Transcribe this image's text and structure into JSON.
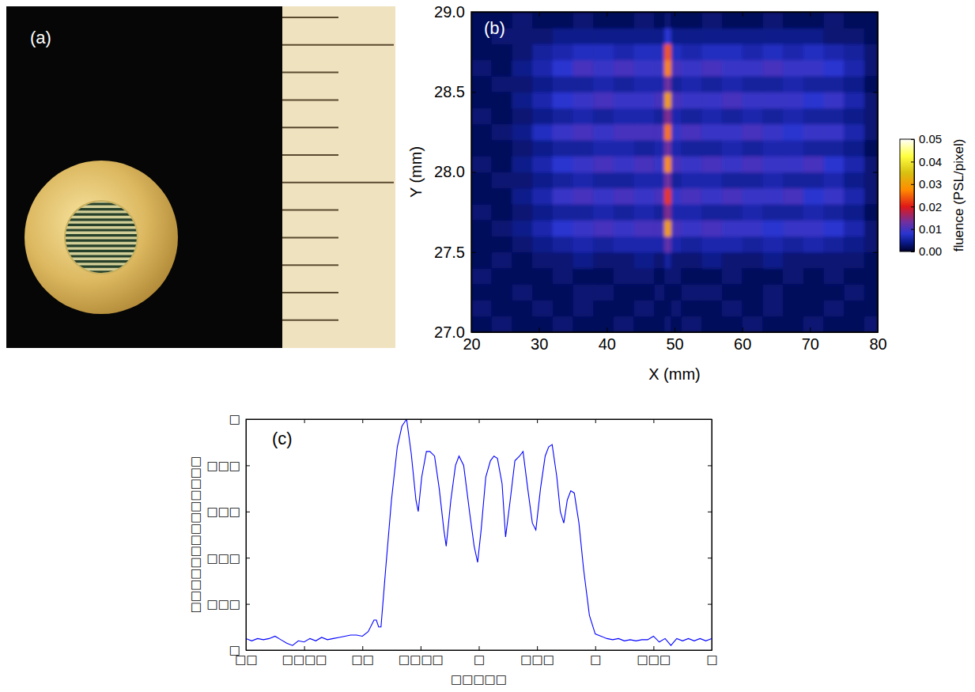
{
  "chart_data": [
    {
      "type": "image",
      "panel": "(a)"
    },
    {
      "type": "heatmap",
      "panel": "(b)",
      "xlabel": "X (mm)",
      "ylabel": "Y (mm)",
      "xlim": [
        20,
        80
      ],
      "xticks": [
        20,
        30,
        40,
        50,
        60,
        70,
        80
      ],
      "ylim": [
        27.0,
        29.0
      ],
      "yticks": [
        {
          "value": 27.0,
          "label": "27.0"
        },
        27.5,
        {
          "value": 28.0,
          "label": "28.0"
        },
        28.5,
        {
          "value": 29.0,
          "label": "29.0"
        }
      ],
      "x_edges": [
        20,
        23,
        26,
        29,
        32,
        35,
        38,
        41,
        44,
        47,
        48.5,
        49.5,
        51,
        54,
        57,
        60,
        63,
        66,
        69,
        72,
        75,
        78,
        80
      ],
      "y_edges": [
        27.0,
        27.1,
        27.2,
        27.3,
        27.4,
        27.5,
        27.6,
        27.7,
        27.8,
        27.9,
        28.0,
        28.1,
        28.2,
        28.3,
        28.4,
        28.5,
        28.6,
        28.7,
        28.8,
        28.9,
        29.0
      ],
      "z": [
        [
          0.002,
          0.003,
          0.002,
          0.002,
          0.003,
          0.002,
          0.002,
          0.003,
          0.002,
          0.002,
          0.003,
          0.002,
          0.003,
          0.002,
          0.002,
          0.003,
          0.002,
          0.002,
          0.003,
          0.002,
          0.002,
          0.003
        ],
        [
          0.003,
          0.002,
          0.002,
          0.003,
          0.002,
          0.003,
          0.002,
          0.002,
          0.003,
          0.002,
          0.002,
          0.003,
          0.002,
          0.002,
          0.003,
          0.002,
          0.003,
          0.002,
          0.002,
          0.003,
          0.002,
          0.002
        ],
        [
          0.002,
          0.002,
          0.003,
          0.002,
          0.002,
          0.003,
          0.003,
          0.002,
          0.002,
          0.003,
          0.002,
          0.002,
          0.003,
          0.003,
          0.002,
          0.002,
          0.003,
          0.002,
          0.002,
          0.002,
          0.003,
          0.002
        ],
        [
          0.003,
          0.002,
          0.002,
          0.002,
          0.003,
          0.002,
          0.002,
          0.003,
          0.003,
          0.002,
          0.003,
          0.003,
          0.002,
          0.002,
          0.003,
          0.002,
          0.002,
          0.003,
          0.002,
          0.003,
          0.002,
          0.002
        ],
        [
          0.002,
          0.003,
          0.002,
          0.003,
          0.003,
          0.004,
          0.003,
          0.003,
          0.004,
          0.003,
          0.005,
          0.003,
          0.003,
          0.004,
          0.003,
          0.003,
          0.004,
          0.003,
          0.003,
          0.003,
          0.003,
          0.002
        ],
        [
          0.002,
          0.002,
          0.003,
          0.004,
          0.005,
          0.006,
          0.005,
          0.006,
          0.006,
          0.006,
          0.012,
          0.006,
          0.005,
          0.006,
          0.006,
          0.005,
          0.006,
          0.005,
          0.006,
          0.005,
          0.004,
          0.003
        ],
        [
          0.002,
          0.003,
          0.004,
          0.006,
          0.008,
          0.009,
          0.01,
          0.009,
          0.01,
          0.01,
          0.03,
          0.01,
          0.009,
          0.01,
          0.009,
          0.009,
          0.008,
          0.009,
          0.009,
          0.008,
          0.006,
          0.003
        ],
        [
          0.003,
          0.002,
          0.003,
          0.004,
          0.005,
          0.005,
          0.006,
          0.005,
          0.006,
          0.005,
          0.014,
          0.006,
          0.006,
          0.005,
          0.005,
          0.006,
          0.005,
          0.005,
          0.006,
          0.005,
          0.004,
          0.002
        ],
        [
          0.002,
          0.002,
          0.004,
          0.006,
          0.009,
          0.01,
          0.009,
          0.01,
          0.009,
          0.01,
          0.022,
          0.009,
          0.01,
          0.009,
          0.01,
          0.009,
          0.009,
          0.01,
          0.008,
          0.009,
          0.006,
          0.003
        ],
        [
          0.002,
          0.003,
          0.003,
          0.004,
          0.005,
          0.006,
          0.005,
          0.005,
          0.006,
          0.006,
          0.013,
          0.005,
          0.006,
          0.006,
          0.005,
          0.005,
          0.006,
          0.005,
          0.005,
          0.006,
          0.004,
          0.003
        ],
        [
          0.003,
          0.002,
          0.004,
          0.006,
          0.008,
          0.009,
          0.01,
          0.009,
          0.01,
          0.009,
          0.028,
          0.01,
          0.009,
          0.01,
          0.009,
          0.01,
          0.009,
          0.009,
          0.01,
          0.008,
          0.006,
          0.003
        ],
        [
          0.002,
          0.002,
          0.003,
          0.004,
          0.005,
          0.005,
          0.006,
          0.006,
          0.005,
          0.006,
          0.013,
          0.006,
          0.005,
          0.005,
          0.006,
          0.005,
          0.006,
          0.006,
          0.005,
          0.005,
          0.004,
          0.002
        ],
        [
          0.002,
          0.003,
          0.004,
          0.007,
          0.009,
          0.01,
          0.009,
          0.01,
          0.01,
          0.01,
          0.026,
          0.009,
          0.01,
          0.009,
          0.009,
          0.01,
          0.009,
          0.008,
          0.009,
          0.009,
          0.006,
          0.003
        ],
        [
          0.003,
          0.002,
          0.003,
          0.004,
          0.005,
          0.006,
          0.005,
          0.006,
          0.006,
          0.005,
          0.014,
          0.006,
          0.005,
          0.006,
          0.005,
          0.006,
          0.005,
          0.006,
          0.005,
          0.005,
          0.004,
          0.003
        ],
        [
          0.002,
          0.002,
          0.004,
          0.006,
          0.008,
          0.009,
          0.01,
          0.009,
          0.009,
          0.01,
          0.03,
          0.01,
          0.009,
          0.009,
          0.01,
          0.009,
          0.009,
          0.009,
          0.008,
          0.009,
          0.006,
          0.003
        ],
        [
          0.002,
          0.003,
          0.003,
          0.004,
          0.005,
          0.005,
          0.006,
          0.005,
          0.006,
          0.006,
          0.013,
          0.005,
          0.006,
          0.005,
          0.006,
          0.005,
          0.005,
          0.006,
          0.005,
          0.005,
          0.004,
          0.002
        ],
        [
          0.003,
          0.002,
          0.004,
          0.006,
          0.008,
          0.01,
          0.009,
          0.01,
          0.009,
          0.009,
          0.027,
          0.01,
          0.009,
          0.01,
          0.009,
          0.009,
          0.01,
          0.009,
          0.009,
          0.008,
          0.006,
          0.003
        ],
        [
          0.002,
          0.002,
          0.003,
          0.005,
          0.006,
          0.007,
          0.007,
          0.006,
          0.007,
          0.007,
          0.024,
          0.007,
          0.006,
          0.007,
          0.007,
          0.006,
          0.007,
          0.006,
          0.007,
          0.006,
          0.005,
          0.003
        ],
        [
          0.002,
          0.003,
          0.003,
          0.003,
          0.004,
          0.004,
          0.004,
          0.004,
          0.004,
          0.004,
          0.008,
          0.004,
          0.004,
          0.004,
          0.004,
          0.004,
          0.004,
          0.004,
          0.004,
          0.003,
          0.003,
          0.002
        ],
        [
          0.002,
          0.002,
          0.003,
          0.002,
          0.002,
          0.003,
          0.002,
          0.002,
          0.003,
          0.002,
          0.003,
          0.002,
          0.002,
          0.003,
          0.002,
          0.002,
          0.003,
          0.002,
          0.002,
          0.003,
          0.002,
          0.002
        ]
      ],
      "colorbar": {
        "range": [
          0,
          0.05
        ],
        "ticks": [
          {
            "value": 0,
            "label": "0.00"
          },
          0.01,
          0.02,
          0.03,
          0.04,
          0.05
        ],
        "label": "fluence (PSL/pixel)"
      }
    },
    {
      "type": "line",
      "panel": "(c)",
      "xlabel": "□□□□□",
      "ylabel": "□□□□□□□□□□□□□□",
      "color": "#0000ff",
      "xlim": [
        -2,
        2
      ],
      "xticks": [
        {
          "value": -2,
          "label": "□□"
        },
        {
          "value": -1.5,
          "label": "□□□□"
        },
        {
          "value": -1,
          "label": "□□"
        },
        {
          "value": -0.5,
          "label": "□□□□"
        },
        {
          "value": 0,
          "label": "□"
        },
        {
          "value": 0.5,
          "label": "□□□"
        },
        {
          "value": 1,
          "label": "□"
        },
        {
          "value": 1.5,
          "label": "□□□"
        },
        {
          "value": 2,
          "label": "□"
        }
      ],
      "ylim": [
        0,
        1
      ],
      "yticks": [
        {
          "value": 0,
          "label": "□"
        },
        {
          "value": 0.2,
          "label": "□□□"
        },
        {
          "value": 0.4,
          "label": "□□□"
        },
        {
          "value": 0.6,
          "label": "□□□"
        },
        {
          "value": 0.8,
          "label": "□□□"
        },
        {
          "value": 1,
          "label": "□"
        }
      ],
      "x": [
        -2.0,
        -1.95,
        -1.9,
        -1.85,
        -1.8,
        -1.75,
        -1.7,
        -1.65,
        -1.6,
        -1.55,
        -1.5,
        -1.45,
        -1.4,
        -1.35,
        -1.3,
        -1.25,
        -1.2,
        -1.15,
        -1.1,
        -1.05,
        -1.0,
        -0.95,
        -0.9,
        -0.88,
        -0.86,
        -0.84,
        -0.8,
        -0.75,
        -0.7,
        -0.66,
        -0.62,
        -0.58,
        -0.54,
        -0.52,
        -0.49,
        -0.45,
        -0.42,
        -0.38,
        -0.34,
        -0.3,
        -0.28,
        -0.24,
        -0.2,
        -0.17,
        -0.13,
        -0.08,
        -0.04,
        -0.01,
        0.02,
        0.06,
        0.1,
        0.13,
        0.16,
        0.2,
        0.23,
        0.27,
        0.31,
        0.35,
        0.38,
        0.42,
        0.46,
        0.49,
        0.53,
        0.57,
        0.6,
        0.63,
        0.67,
        0.7,
        0.73,
        0.76,
        0.79,
        0.82,
        0.86,
        0.9,
        0.95,
        1.0,
        1.05,
        1.1,
        1.15,
        1.2,
        1.25,
        1.3,
        1.35,
        1.4,
        1.45,
        1.5,
        1.55,
        1.6,
        1.65,
        1.7,
        1.75,
        1.8,
        1.85,
        1.9,
        1.95,
        2.0
      ],
      "values": [
        0.05,
        0.04,
        0.05,
        0.045,
        0.05,
        0.06,
        0.045,
        0.03,
        0.02,
        0.04,
        0.035,
        0.05,
        0.04,
        0.055,
        0.045,
        0.05,
        0.055,
        0.06,
        0.065,
        0.065,
        0.06,
        0.08,
        0.13,
        0.13,
        0.1,
        0.1,
        0.35,
        0.65,
        0.88,
        0.97,
        1.0,
        0.85,
        0.65,
        0.6,
        0.75,
        0.86,
        0.86,
        0.84,
        0.7,
        0.52,
        0.45,
        0.65,
        0.8,
        0.84,
        0.8,
        0.6,
        0.45,
        0.38,
        0.52,
        0.75,
        0.82,
        0.84,
        0.83,
        0.72,
        0.49,
        0.65,
        0.82,
        0.84,
        0.86,
        0.7,
        0.55,
        0.52,
        0.7,
        0.84,
        0.88,
        0.89,
        0.75,
        0.6,
        0.55,
        0.65,
        0.69,
        0.68,
        0.55,
        0.35,
        0.15,
        0.07,
        0.06,
        0.05,
        0.045,
        0.05,
        0.04,
        0.045,
        0.04,
        0.045,
        0.045,
        0.06,
        0.035,
        0.05,
        0.02,
        0.05,
        0.04,
        0.05,
        0.04,
        0.05,
        0.04,
        0.05
      ]
    }
  ]
}
